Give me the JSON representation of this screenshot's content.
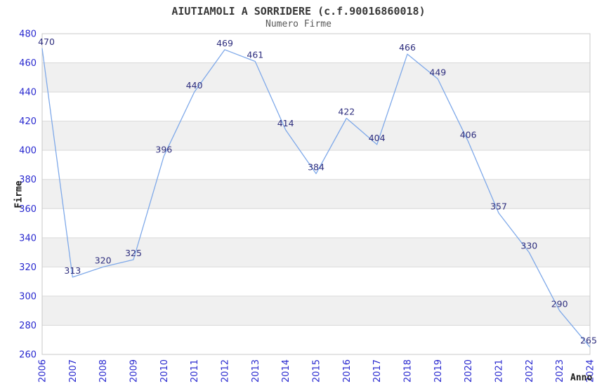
{
  "chart_data": {
    "type": "line",
    "title": "AIUTIAMOLI A SORRIDERE (c.f.90016860018)",
    "subtitle": "Numero Firme",
    "xlabel": "Anno",
    "ylabel": "Firme",
    "categories": [
      "2006",
      "2007",
      "2008",
      "2009",
      "2010",
      "2011",
      "2012",
      "2013",
      "2014",
      "2015",
      "2016",
      "2017",
      "2018",
      "2019",
      "2020",
      "2021",
      "2022",
      "2023",
      "2024"
    ],
    "values": [
      470,
      313,
      320,
      325,
      396,
      440,
      469,
      461,
      414,
      384,
      422,
      404,
      466,
      449,
      406,
      357,
      330,
      290,
      265
    ],
    "ylim": [
      260,
      480
    ],
    "ytick_step": 20,
    "yticks": [
      260,
      280,
      300,
      320,
      340,
      360,
      380,
      400,
      420,
      440,
      460,
      480
    ],
    "grid": "horizontal-with-alternating-bands",
    "legend_position": "none",
    "data_labels_shown": true,
    "colors": {
      "line": "#7fa9e9",
      "tick_label": "#2828cf",
      "data_label": "#2e2e7e",
      "band_fill": "#f0f0f0",
      "gridline": "#d9d9d9",
      "plot_border": "#c8c8c8",
      "title": "#383838",
      "subtitle": "#585858",
      "axis_title": "#1a1a1a",
      "background": "#ffffff"
    }
  }
}
